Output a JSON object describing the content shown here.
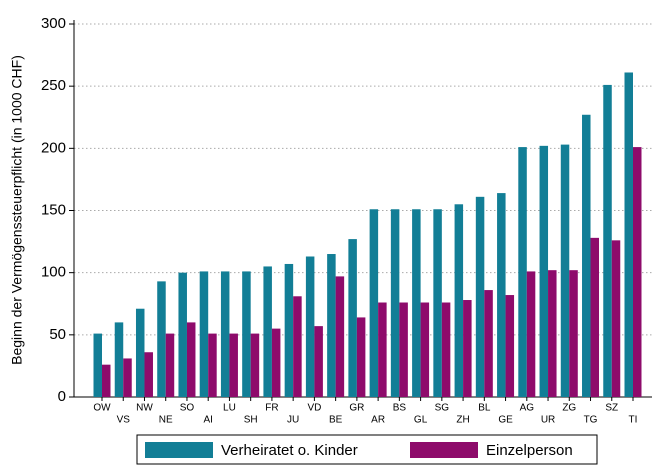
{
  "chart_data": {
    "type": "bar",
    "y_label": "Beginn der Vermögenssteuerpflicht (in 1000 CHF)",
    "categories": [
      "OW",
      "VS",
      "NW",
      "NE",
      "SO",
      "AI",
      "LU",
      "SH",
      "FR",
      "JU",
      "VD",
      "BE",
      "GR",
      "AR",
      "BS",
      "GL",
      "SG",
      "ZH",
      "BL",
      "GE",
      "AG",
      "UR",
      "ZG",
      "TG",
      "SZ",
      "TI"
    ],
    "series": [
      {
        "name": "Verheiratet o. Kinder",
        "color": "#127e96",
        "values": [
          51,
          60,
          71,
          93,
          100,
          101,
          101,
          101,
          105,
          107,
          113,
          115,
          127,
          151,
          151,
          151,
          151,
          155,
          161,
          164,
          201,
          202,
          203,
          227,
          251,
          261
        ]
      },
      {
        "name": "Einzelperson",
        "color": "#8e0b6b",
        "values": [
          26,
          31,
          36,
          51,
          60,
          51,
          51,
          51,
          55,
          81,
          57,
          97,
          64,
          76,
          76,
          76,
          76,
          78,
          86,
          82,
          101,
          102,
          102,
          128,
          126,
          201
        ]
      }
    ],
    "ylim": [
      0,
      300
    ],
    "yticks": [
      0,
      50,
      100,
      150,
      200,
      250,
      300
    ],
    "grid": true,
    "legend": "bottom"
  }
}
